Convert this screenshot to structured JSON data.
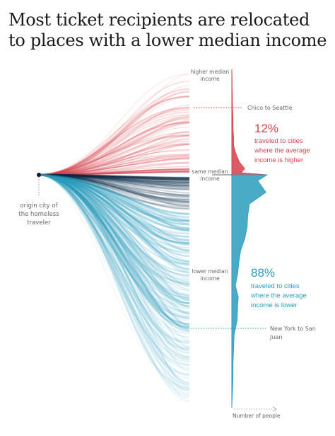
{
  "title": "Most ticket recipients are relocated to places with a lower median income",
  "chart_data": {
    "type": "area",
    "axis_labels": {
      "top": "higher median income",
      "middle": "same median income",
      "bottom": "lower median income",
      "x": "Number of people"
    },
    "origin_label": "origin city of the homeless traveler",
    "higher": {
      "percent": "12%",
      "text": "traveled to cities where the average income is higher",
      "color": "#d6404b"
    },
    "lower": {
      "percent": "88%",
      "text": "traveled to cities where the average income is lower",
      "color": "#2a9cbd"
    },
    "annotations": [
      {
        "label": "Chico to Seattle",
        "y": 0.6
      },
      {
        "label": "New York to San Juan",
        "y": -0.45
      }
    ],
    "colors": {
      "higher": "#d6404b",
      "lower": "#2a9cbd",
      "dark": "#0d2b4a"
    },
    "distribution": {
      "y": [
        1.0,
        0.92,
        0.84,
        0.76,
        0.68,
        0.6,
        0.52,
        0.44,
        0.36,
        0.28,
        0.2,
        0.12,
        0.06,
        0.02,
        0.0,
        -0.02,
        -0.06,
        -0.1,
        -0.14,
        -0.18,
        -0.22,
        -0.26,
        -0.3,
        -0.34,
        -0.38,
        -0.42,
        -0.45,
        -0.5,
        -0.55,
        -0.6,
        -0.65,
        -0.7,
        -0.75,
        -0.8
      ],
      "count": [
        0,
        0.5,
        0.5,
        1,
        1,
        1.5,
        2,
        2,
        3,
        3,
        7,
        13,
        22,
        16,
        60,
        44,
        58,
        30,
        27,
        26,
        22,
        15,
        12,
        10,
        6,
        11,
        10,
        9,
        4,
        3,
        2,
        2,
        1,
        0
      ],
      "ylim": [
        -0.8,
        1.0
      ]
    }
  }
}
